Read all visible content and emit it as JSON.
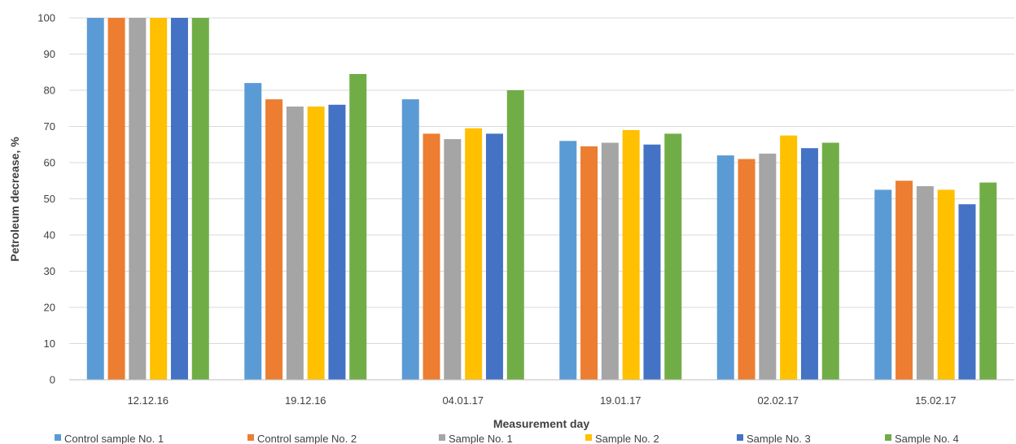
{
  "chart_data": {
    "type": "bar",
    "title": "",
    "xlabel": "Measurement day",
    "ylabel": "Petroleum decrease, %",
    "ylim": [
      0,
      100
    ],
    "yticks": [
      0,
      10,
      20,
      30,
      40,
      50,
      60,
      70,
      80,
      90,
      100
    ],
    "grid": true,
    "legend_position": "bottom",
    "categories": [
      "12.12.16",
      "19.12.16",
      "04.01.17",
      "19.01.17",
      "02.02.17",
      "15.02.17"
    ],
    "series": [
      {
        "name": "Control sample No. 1",
        "color": "#5b9bd5",
        "values": [
          100,
          82,
          77.5,
          66,
          62,
          52.5
        ]
      },
      {
        "name": "Control sample No. 2",
        "color": "#ed7d31",
        "values": [
          100,
          77.5,
          68,
          64.5,
          61,
          55
        ]
      },
      {
        "name": "Sample No. 1",
        "color": "#a5a5a5",
        "values": [
          100,
          75.5,
          66.5,
          65.5,
          62.5,
          53.5
        ]
      },
      {
        "name": "Sample No. 2",
        "color": "#ffc000",
        "values": [
          100,
          75.5,
          69.5,
          69,
          67.5,
          52.5
        ]
      },
      {
        "name": "Sample No. 3",
        "color": "#4472c4",
        "values": [
          100,
          76,
          68,
          65,
          64,
          48.5
        ]
      },
      {
        "name": "Sample No. 4",
        "color": "#70ad47",
        "values": [
          100,
          84.5,
          80,
          68,
          65.5,
          54.5
        ]
      }
    ]
  }
}
